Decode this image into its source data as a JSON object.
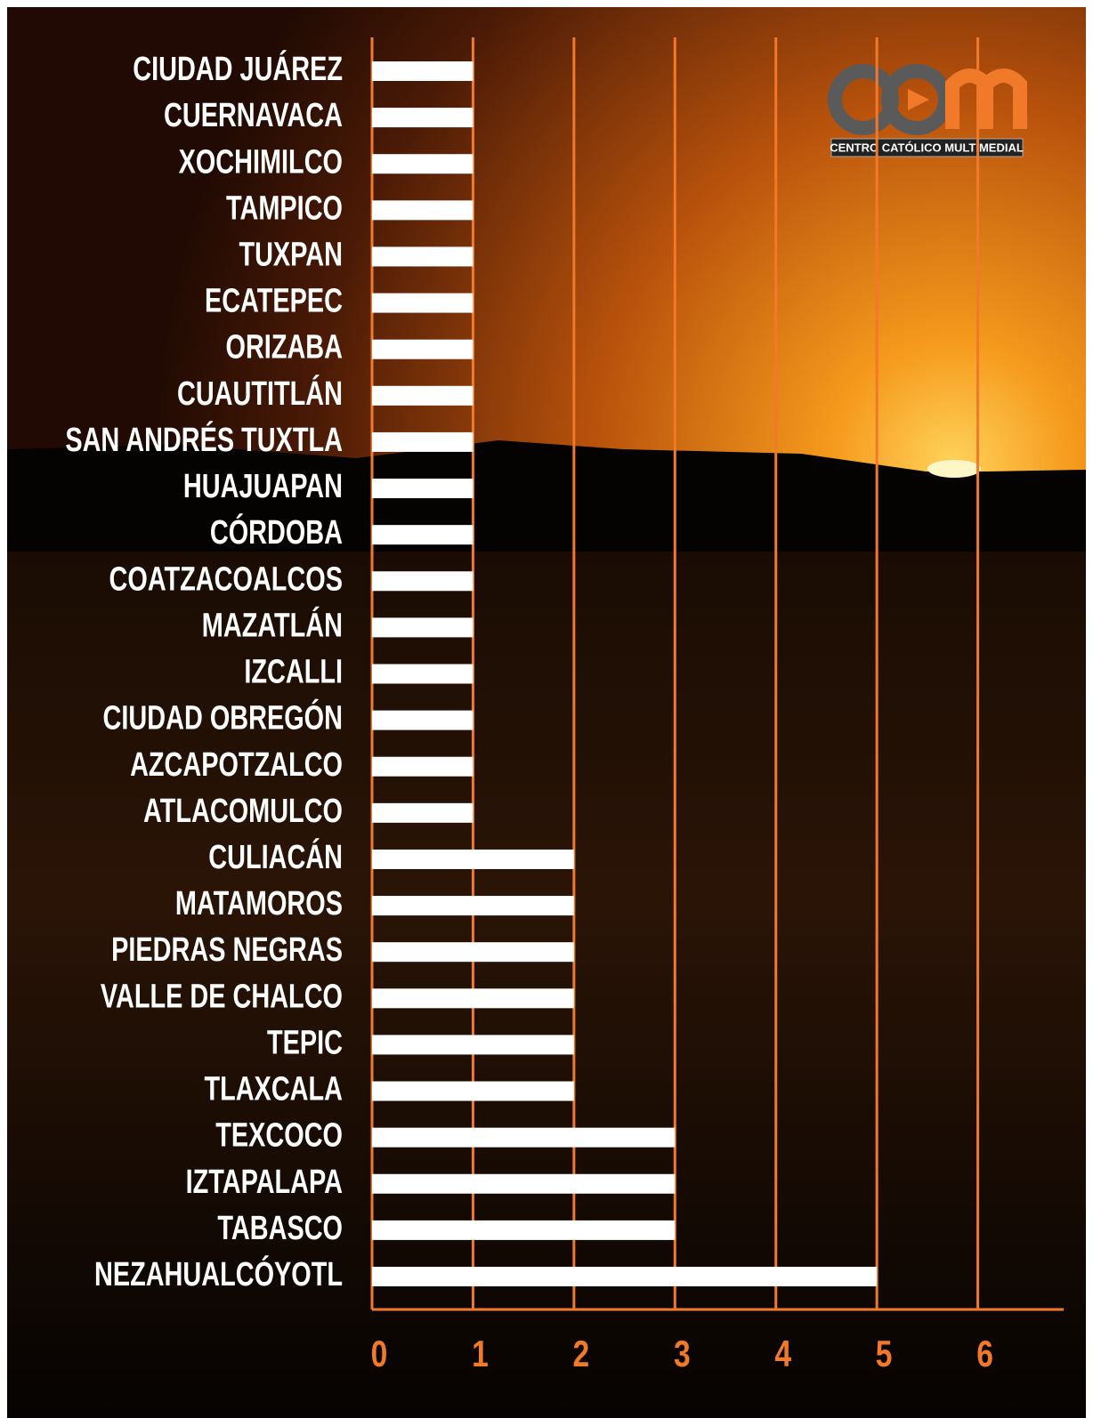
{
  "chart_data": {
    "type": "bar",
    "orientation": "horizontal",
    "categories": [
      "CIUDAD JUÁREZ",
      "CUERNAVACA",
      "XOCHIMILCO",
      "TAMPICO",
      "TUXPAN",
      "ECATEPEC",
      "ORIZABA",
      "CUAUTITLÁN",
      "SAN ANDRÉS TUXTLA",
      "HUAJUAPAN",
      "CÓRDOBA",
      "COATZACOALCOS",
      "MAZATLÁN",
      "IZCALLI",
      "CIUDAD OBREGÓN",
      "AZCAPOTZALCO",
      "ATLACOMULCO",
      "CULIACÁN",
      "MATAMOROS",
      "PIEDRAS NEGRAS",
      "VALLE DE CHALCO",
      "TEPIC",
      "TLAXCALA",
      "TEXCOCO",
      "IZTAPALAPA",
      "TABASCO",
      "NEZAHUALCÓYOTL"
    ],
    "values": [
      1,
      1,
      1,
      1,
      1,
      1,
      1,
      1,
      1,
      1,
      1,
      1,
      1,
      1,
      1,
      1,
      1,
      2,
      2,
      2,
      2,
      2,
      2,
      3,
      3,
      3,
      5
    ],
    "color": "#ffffff",
    "grid_color": "#f07a2a",
    "xlim": [
      0,
      6.85
    ],
    "xticks": [
      0,
      1,
      2,
      3,
      4,
      5,
      6
    ],
    "grid": true,
    "logo_caption": "CENTRO CATÓLICO MULTIMEDIAL"
  }
}
